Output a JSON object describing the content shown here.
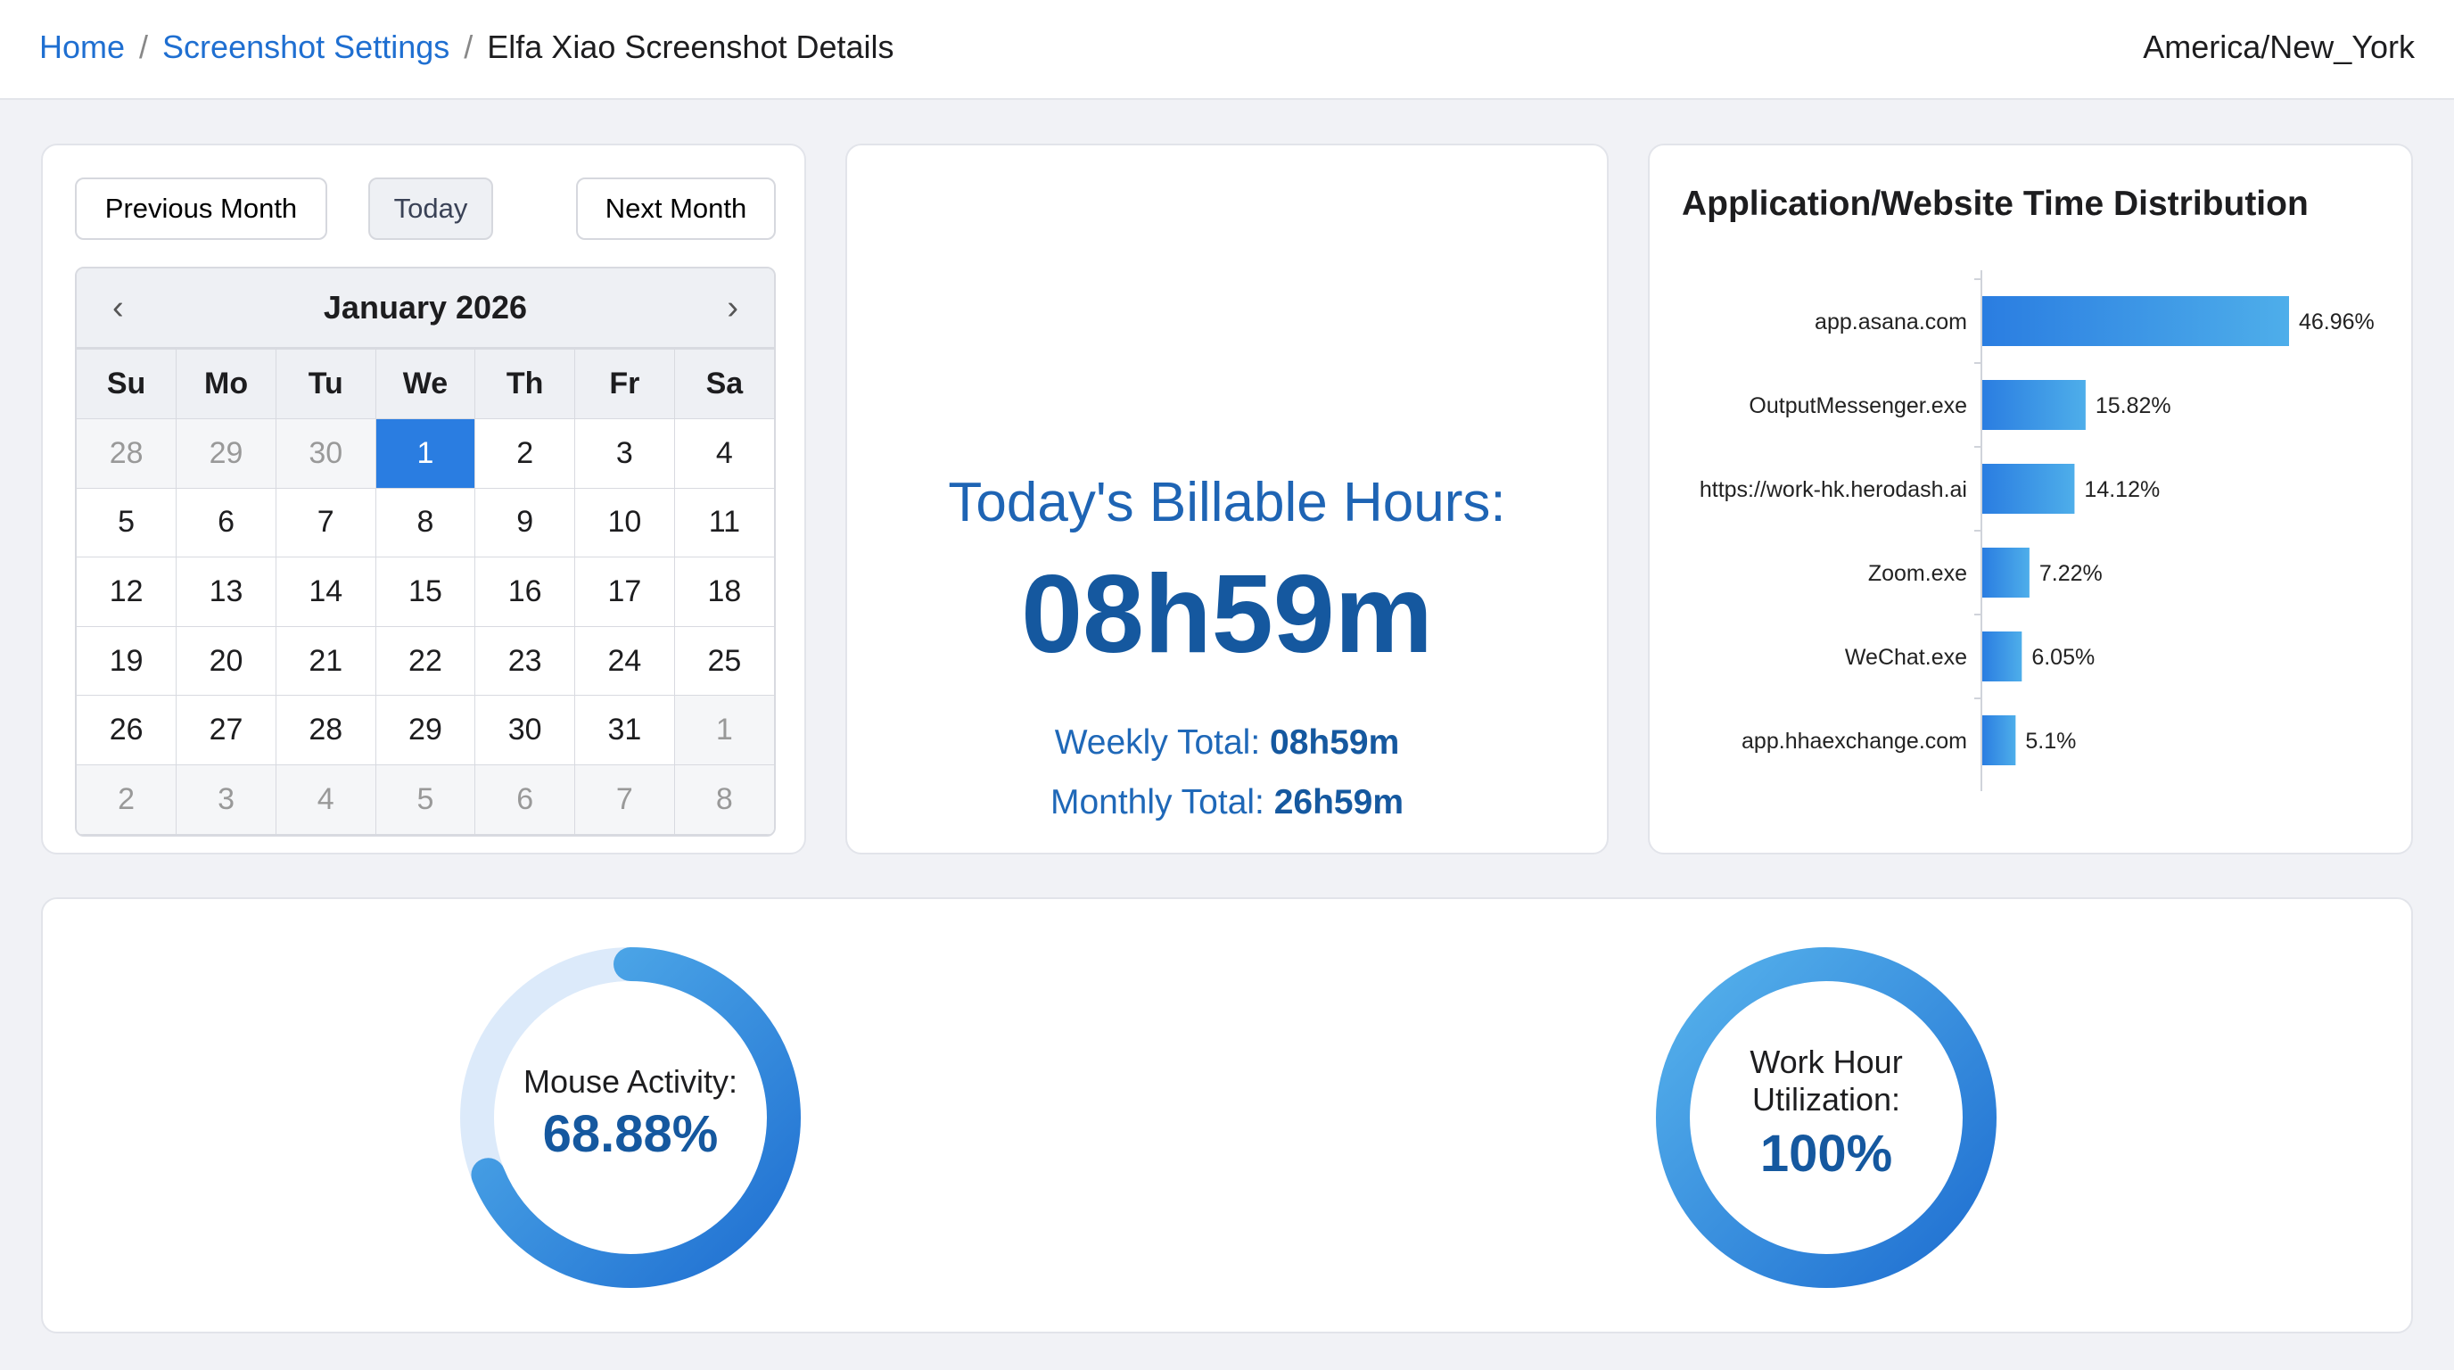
{
  "header": {
    "breadcrumbs": [
      "Home",
      "Screenshot Settings",
      "Elfa Xiao Screenshot Details"
    ],
    "separator": "/",
    "timezone": "America/New_York"
  },
  "calendar": {
    "prev_label": "Previous Month",
    "today_label": "Today",
    "next_label": "Next Month",
    "month_title": "January 2026",
    "prev_icon": "‹",
    "next_icon": "›",
    "weekdays": [
      "Su",
      "Mo",
      "Tu",
      "We",
      "Th",
      "Fr",
      "Sa"
    ],
    "weeks": [
      [
        "28",
        "29",
        "30",
        "1",
        "2",
        "3",
        "4"
      ],
      [
        "5",
        "6",
        "7",
        "8",
        "9",
        "10",
        "11"
      ],
      [
        "12",
        "13",
        "14",
        "15",
        "16",
        "17",
        "18"
      ],
      [
        "19",
        "20",
        "21",
        "22",
        "23",
        "24",
        "25"
      ],
      [
        "26",
        "27",
        "28",
        "29",
        "30",
        "31",
        "1"
      ],
      [
        "2",
        "3",
        "4",
        "5",
        "6",
        "7",
        "8"
      ]
    ],
    "selected": "1"
  },
  "billable": {
    "title": "Today's Billable Hours:",
    "value": "08h59m",
    "weekly_label": "Weekly Total:",
    "weekly_value": "08h59m",
    "monthly_label": "Monthly Total:",
    "monthly_value": "26h59m"
  },
  "chart_data": {
    "type": "bar",
    "orientation": "horizontal",
    "title": "Application/Website Time Distribution",
    "categories": [
      "app.asana.com",
      "OutputMessenger.exe",
      "https://work-hk.herodash.ai",
      "Zoom.exe",
      "WeChat.exe",
      "app.hhaexchange.com"
    ],
    "values": [
      46.96,
      15.82,
      14.12,
      7.22,
      6.05,
      5.1
    ],
    "labels": [
      "46.96%",
      "15.82%",
      "14.12%",
      "7.22%",
      "6.05%",
      "5.1%"
    ],
    "unit": "%",
    "colors": [
      "#2a7de1",
      "#4eaeea"
    ]
  },
  "gauges": [
    {
      "label": "Mouse Activity:",
      "value_text": "68.88%",
      "value": 68.88
    },
    {
      "label_line1": "Work Hour",
      "label_line2": "Utilization:",
      "value_text": "100%",
      "value": 100
    }
  ]
}
